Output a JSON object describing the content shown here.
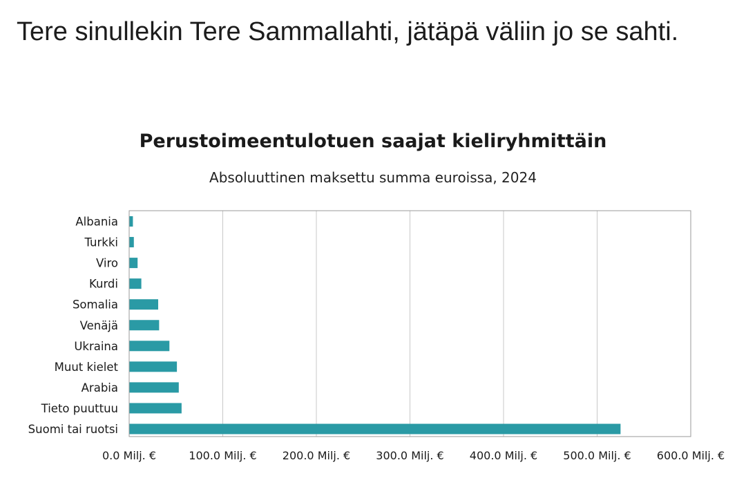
{
  "post": {
    "text": "Tere sinullekin Tere Sammallahti, jätäpä väliin jo se sahti."
  },
  "chart_data": {
    "type": "bar",
    "orientation": "horizontal",
    "title": "Perustoimeentulotuen saajat kieliryhmittäin",
    "subtitle": "Absoluuttinen maksettu summa euroissa, 2024",
    "categories": [
      "Albania",
      "Turkki",
      "Viro",
      "Kurdi",
      "Somalia",
      "Venäjä",
      "Ukraina",
      "Muut kielet",
      "Arabia",
      "Tieto puuttuu",
      "Suomi tai ruotsi"
    ],
    "values": [
      4,
      5,
      9,
      13,
      31,
      32,
      43,
      51,
      53,
      56,
      525
    ],
    "unit": "Milj. €",
    "xlim": [
      0,
      600
    ],
    "ticks": [
      0,
      100,
      200,
      300,
      400,
      500,
      600
    ],
    "tick_labels": [
      "0.0 Milj. €",
      "100.0 Milj. €",
      "200.0 Milj. €",
      "300.0 Milj. €",
      "400.0 Milj. €",
      "500.0 Milj. €",
      "600.0 Milj. €"
    ],
    "grid": true,
    "bar_color": "#2a9aa5",
    "grid_color": "#c8c8c8"
  }
}
